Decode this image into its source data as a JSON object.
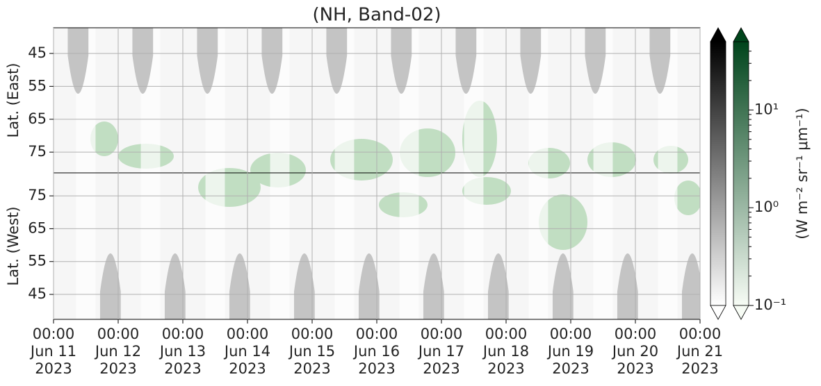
{
  "chart_data": {
    "type": "heatmap",
    "title": "(NH, Band-02)",
    "xlim": [
      "2023-06-11T00:00",
      "2023-06-21T00:00"
    ],
    "xticks": [
      {
        "value": "2023-06-11T00:00",
        "label": [
          "00:00",
          "Jun 11",
          "2023"
        ]
      },
      {
        "value": "2023-06-12T00:00",
        "label": [
          "00:00",
          "Jun 12",
          "2023"
        ]
      },
      {
        "value": "2023-06-13T00:00",
        "label": [
          "00:00",
          "Jun 13",
          "2023"
        ]
      },
      {
        "value": "2023-06-14T00:00",
        "label": [
          "00:00",
          "Jun 14",
          "2023"
        ]
      },
      {
        "value": "2023-06-15T00:00",
        "label": [
          "00:00",
          "Jun 15",
          "2023"
        ]
      },
      {
        "value": "2023-06-16T00:00",
        "label": [
          "00:00",
          "Jun 16",
          "2023"
        ]
      },
      {
        "value": "2023-06-17T00:00",
        "label": [
          "00:00",
          "Jun 17",
          "2023"
        ]
      },
      {
        "value": "2023-06-18T00:00",
        "label": [
          "00:00",
          "Jun 18",
          "2023"
        ]
      },
      {
        "value": "2023-06-19T00:00",
        "label": [
          "00:00",
          "Jun 19",
          "2023"
        ]
      },
      {
        "value": "2023-06-20T00:00",
        "label": [
          "00:00",
          "Jun 20",
          "2023"
        ]
      },
      {
        "value": "2023-06-21T00:00",
        "label": [
          "00:00",
          "Jun 21",
          "2023"
        ]
      }
    ],
    "grid": true,
    "panels": [
      {
        "ylabel": "Lat. (East)",
        "ylim": [
          81.3,
          37.2
        ],
        "yticks": [
          45,
          55,
          65,
          75
        ]
      },
      {
        "ylabel": "Lat. (West)",
        "ylim": [
          37.4,
          82
        ],
        "yticks": [
          45,
          55,
          65,
          75
        ]
      }
    ],
    "colorbars": [
      {
        "colors": [
          "#ffffff",
          "#000000"
        ]
      },
      {
        "colors": [
          "#f7fcf5",
          "#00441b"
        ],
        "log": true,
        "clim": [
          0.1,
          50
        ],
        "cticks": [
          {
            "value": 0.1,
            "label": "10⁻¹"
          },
          {
            "value": 1,
            "label": "10⁰"
          },
          {
            "value": 10,
            "label": "10¹"
          }
        ],
        "clabel": "(W m⁻² sr⁻¹ μm⁻¹)"
      }
    ]
  }
}
